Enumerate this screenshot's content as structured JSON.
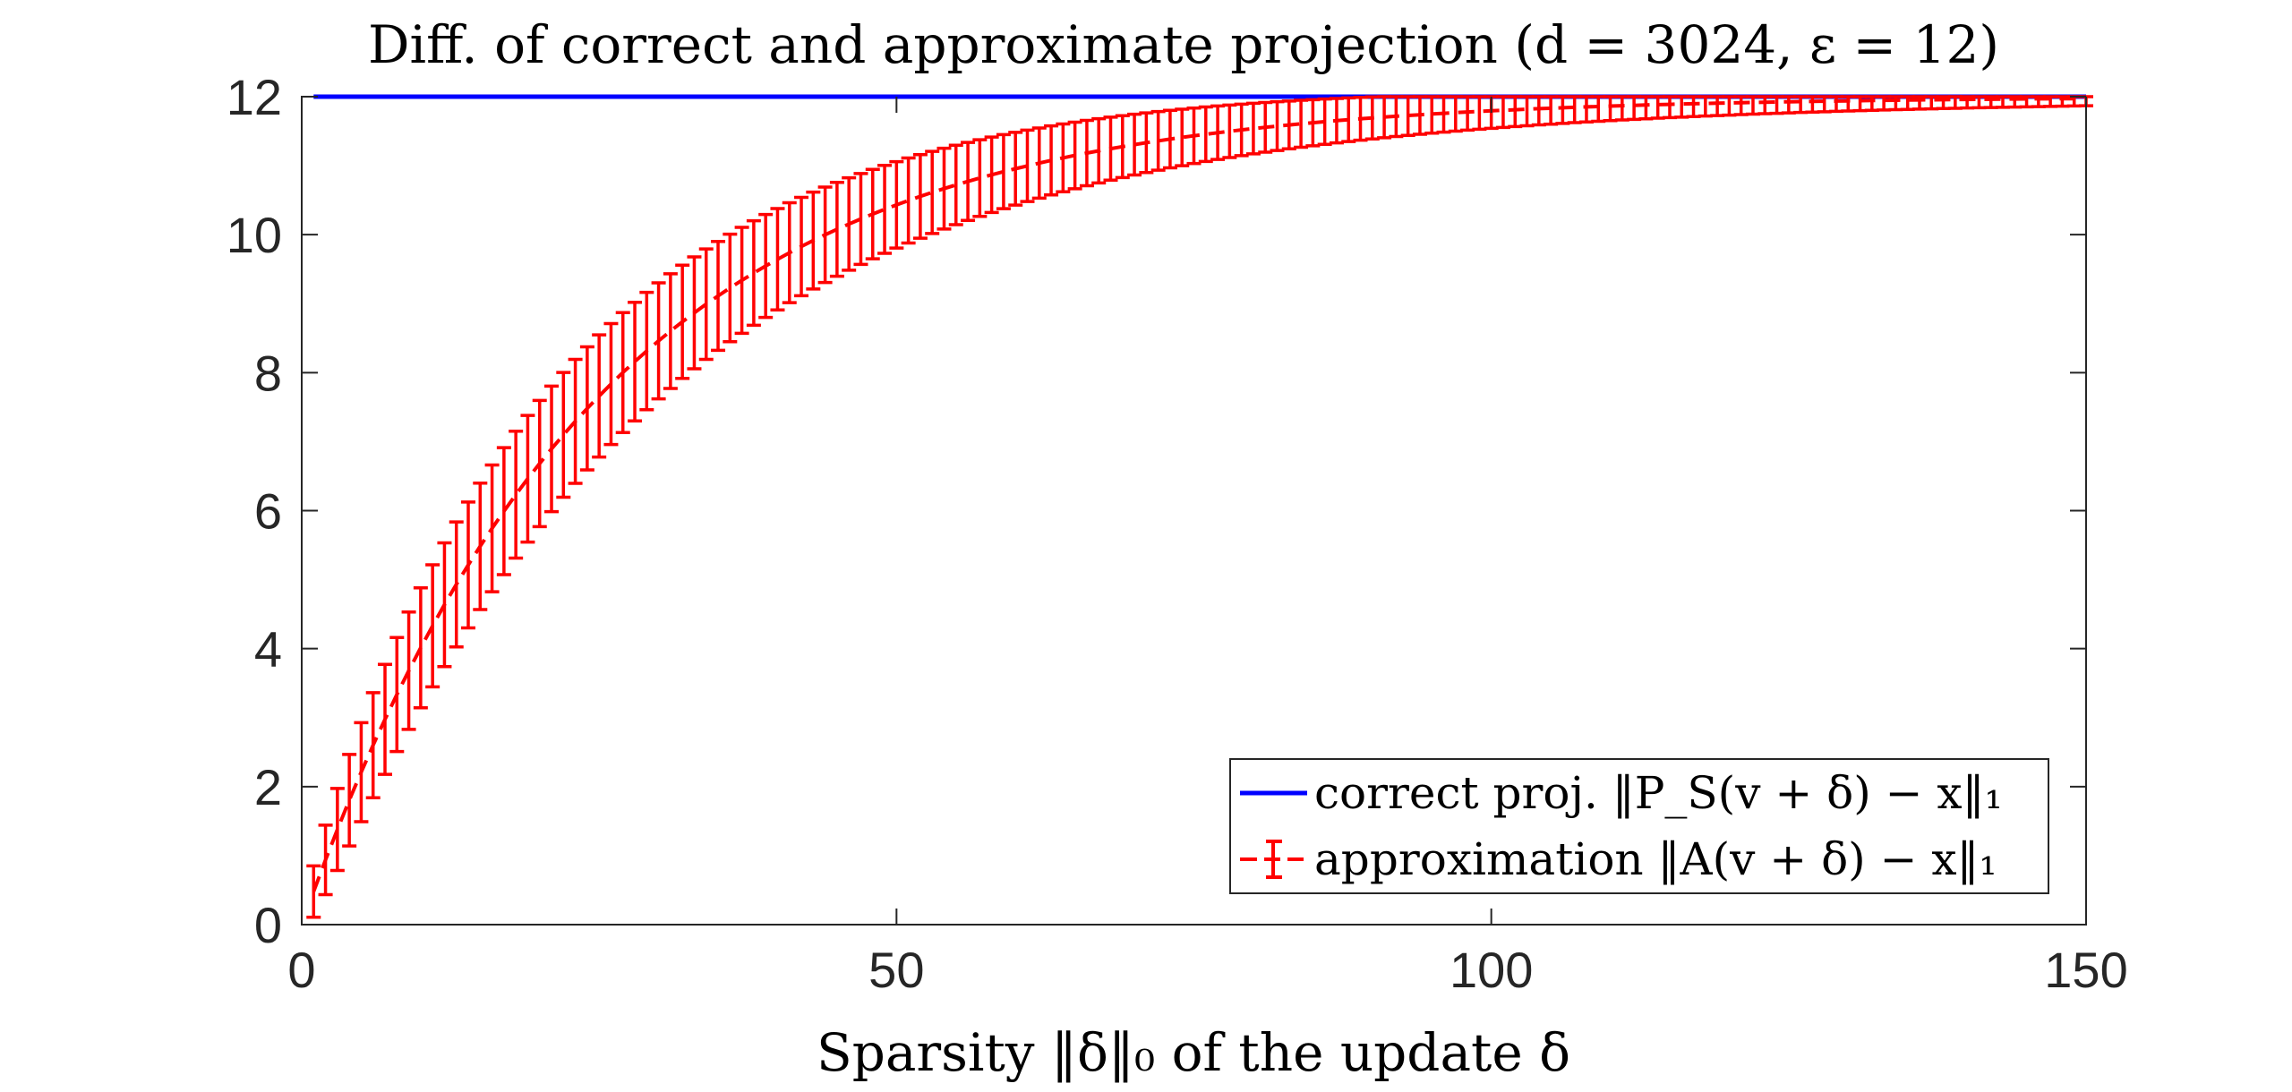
{
  "chart_data": {
    "type": "line",
    "title": "Diff. of correct and approximate projection (d = 3024, ε = 12)",
    "xlabel": "Sparsity ‖δ‖₀ of the update δ",
    "ylabel": "",
    "xlim": [
      0,
      150
    ],
    "ylim": [
      0,
      12
    ],
    "xticks": [
      0,
      50,
      100,
      150
    ],
    "yticks": [
      0,
      2,
      4,
      6,
      8,
      10,
      12
    ],
    "grid": false,
    "legend_position": "bottom-right",
    "colors": {
      "correct": "#0000ff",
      "approx": "#ff0000"
    },
    "series": [
      {
        "name": "correct proj. ‖P_S(v + δ) − x‖₁",
        "style": "solid",
        "color": "#0000ff",
        "x": [
          1,
          150
        ],
        "y": [
          12,
          12
        ]
      },
      {
        "name": "approximation ‖A(v + δ) − x‖₁",
        "style": "dashed-errorbar",
        "color": "#ff0000",
        "model": {
          "asymptote": 12,
          "rate": 0.0407,
          "sd_scale": 1.8,
          "x_start": 1,
          "x_end": 150,
          "x_step": 1
        }
      }
    ]
  }
}
